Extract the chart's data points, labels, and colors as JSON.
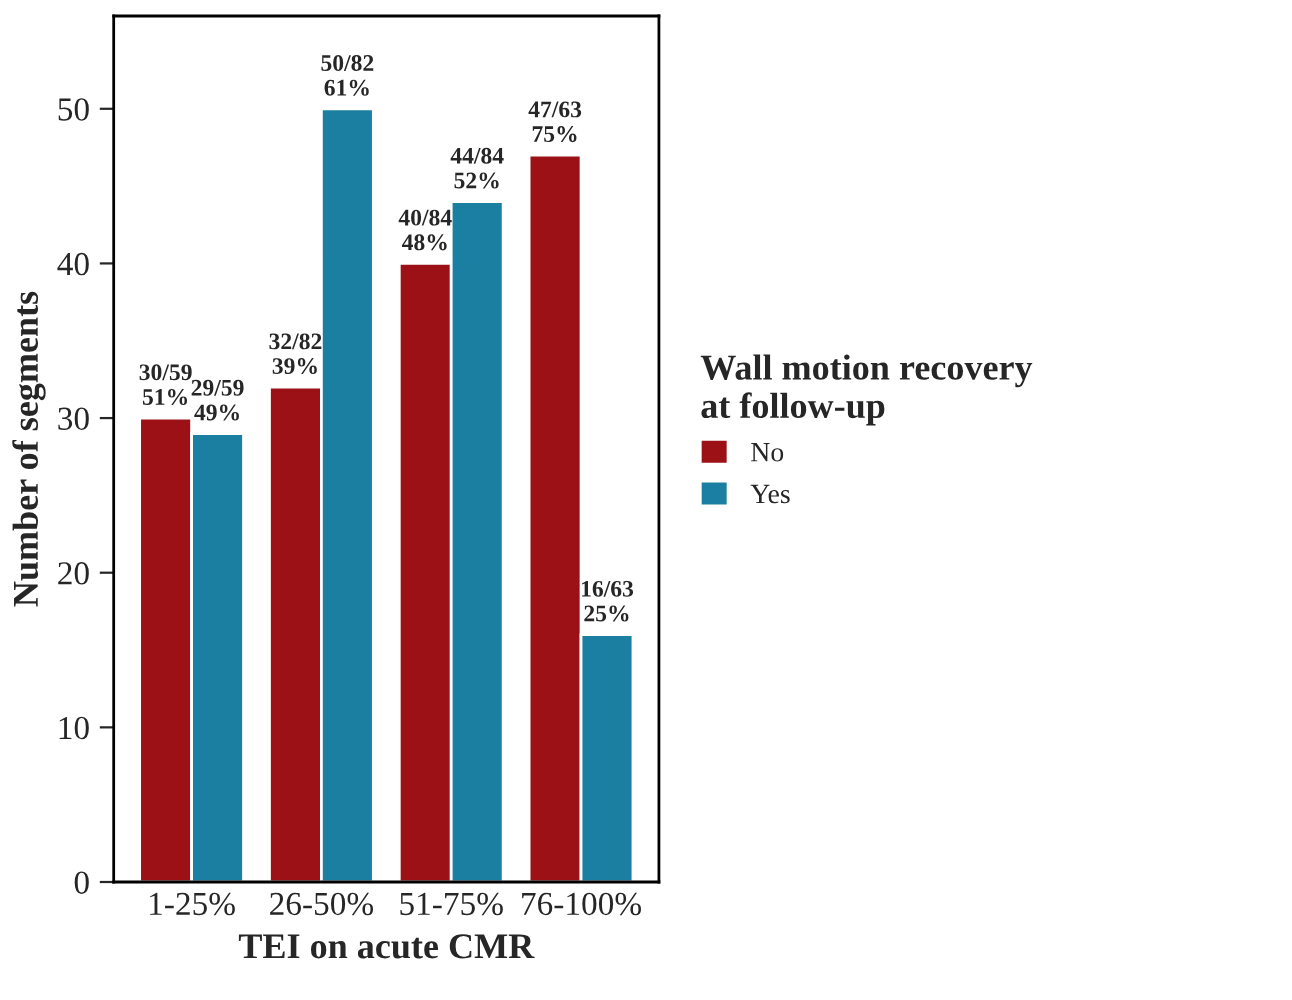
{
  "chart_data": {
    "type": "bar",
    "xlabel": "TEI on acute CMR",
    "ylabel": "Number of segments",
    "legend_title": "Wall motion recovery\nat follow-up",
    "categories": [
      "1-25%",
      "26-50%",
      "51-75%",
      "76-100%"
    ],
    "series": [
      {
        "name": "No",
        "color": "#9b1116",
        "values": [
          30,
          32,
          40,
          47
        ],
        "value_labels": [
          "30/59\n51%",
          "32/82\n39%",
          "40/84\n48%",
          "47/63\n75%"
        ]
      },
      {
        "name": "Yes",
        "color": "#1b7fa1",
        "values": [
          29,
          50,
          44,
          16
        ],
        "value_labels": [
          "29/59\n49%",
          "50/82\n61%",
          "44/84\n52%",
          "16/63\n25%"
        ]
      }
    ],
    "ylim": [
      0,
      56
    ],
    "yticks": [
      0,
      10,
      20,
      30,
      40,
      50
    ],
    "grid": false,
    "legend": "right"
  }
}
